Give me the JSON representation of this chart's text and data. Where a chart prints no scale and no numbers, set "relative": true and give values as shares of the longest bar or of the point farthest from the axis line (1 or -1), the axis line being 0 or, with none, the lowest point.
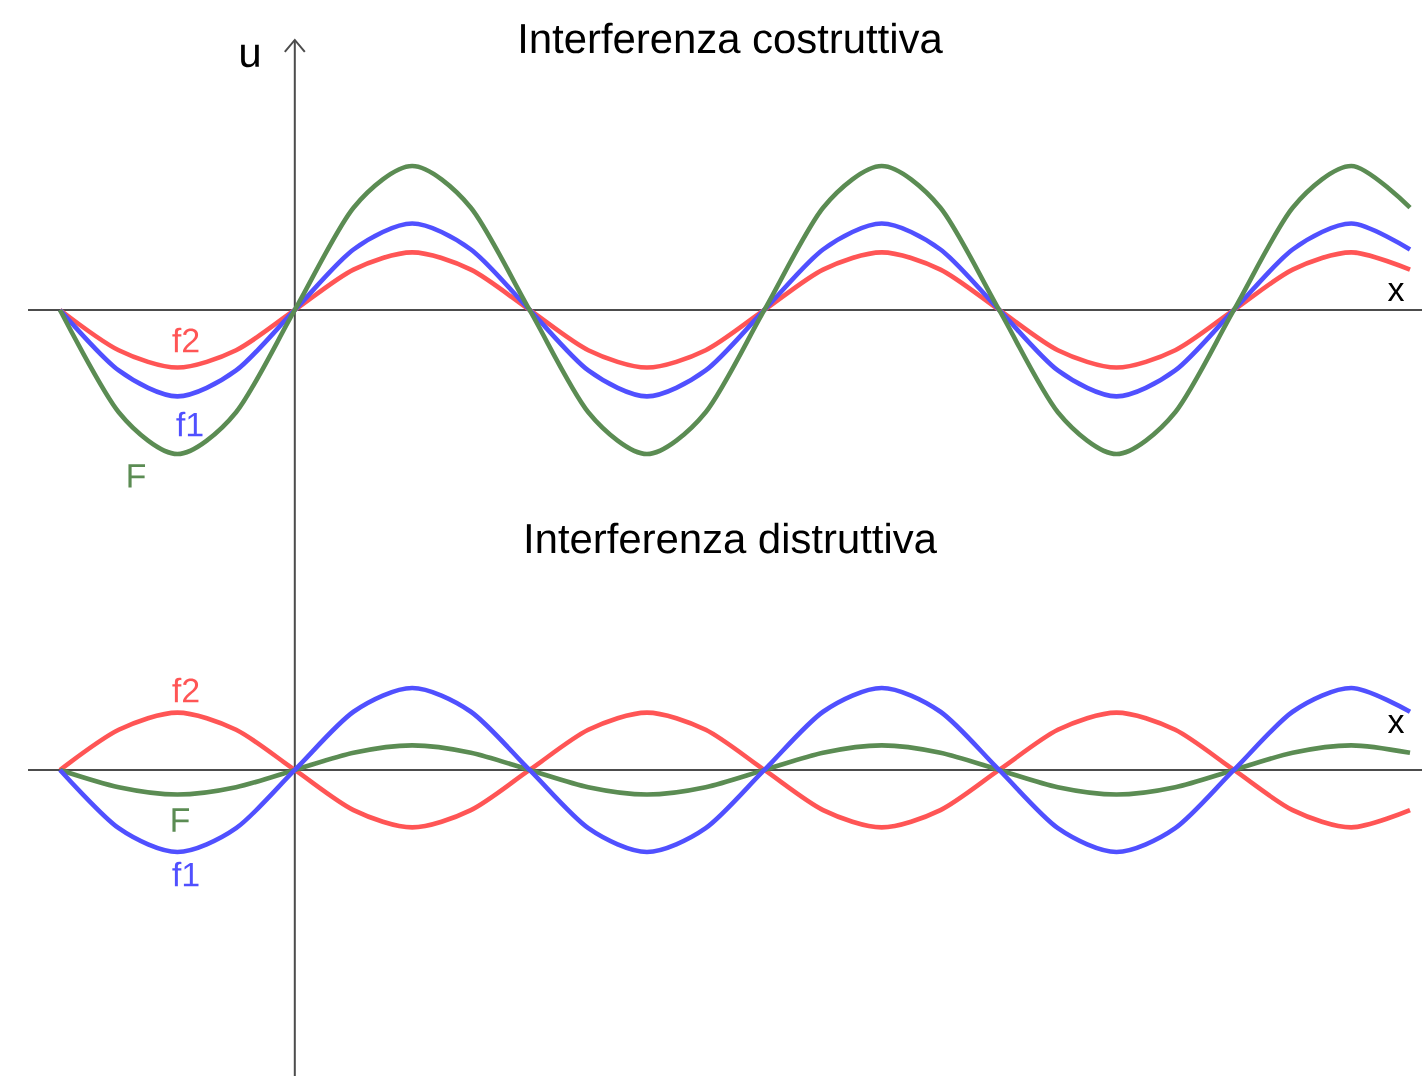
{
  "chart_data": [
    {
      "type": "line",
      "title": "Interferenza costruttiva",
      "xlabel": "x",
      "ylabel": "u",
      "relative": true,
      "categories": [
        null,
        null,
        null,
        null,
        null,
        null,
        null,
        null,
        null,
        null,
        null,
        null,
        null,
        null,
        null,
        null,
        null,
        null,
        null,
        null,
        null,
        null,
        null,
        null
      ],
      "series": [
        {
          "name": "f2",
          "color": "#ff5555",
          "values": [
            0,
            -0.28,
            -0.4,
            -0.28,
            0,
            0.28,
            0.4,
            0.28,
            0,
            -0.28,
            -0.4,
            -0.28,
            0,
            0.28,
            0.4,
            0.28,
            0,
            -0.28,
            -0.4,
            -0.28,
            0,
            0.28,
            0.4,
            0.28
          ]
        },
        {
          "name": "f1",
          "color": "#5050ff",
          "values": [
            0,
            -0.42,
            -0.6,
            -0.42,
            0,
            0.42,
            0.6,
            0.42,
            0,
            -0.42,
            -0.6,
            -0.42,
            0,
            0.42,
            0.6,
            0.42,
            0,
            -0.42,
            -0.6,
            -0.42,
            0,
            0.42,
            0.6,
            0.42
          ]
        },
        {
          "name": "F",
          "color": "#5b8c53",
          "values": [
            0,
            -0.71,
            -1,
            -0.71,
            0,
            0.71,
            1,
            0.71,
            0,
            -0.71,
            -1,
            -0.71,
            0,
            0.71,
            1,
            0.71,
            0,
            -0.71,
            -1,
            -0.71,
            0,
            0.71,
            1,
            0.71
          ]
        }
      ]
    },
    {
      "type": "line",
      "title": "Interferenza distruttiva",
      "xlabel": "x",
      "relative": true,
      "categories": [
        null,
        null,
        null,
        null,
        null,
        null,
        null,
        null,
        null,
        null,
        null,
        null,
        null,
        null,
        null,
        null,
        null,
        null,
        null,
        null,
        null,
        null,
        null,
        null
      ],
      "series": [
        {
          "name": "f2",
          "color": "#ff5555",
          "values": [
            0,
            0.49,
            0.7,
            0.49,
            0,
            -0.49,
            -0.7,
            -0.49,
            0,
            0.49,
            0.7,
            0.49,
            0,
            -0.49,
            -0.7,
            -0.49,
            0,
            0.49,
            0.7,
            0.49,
            0,
            -0.49,
            -0.7,
            -0.49
          ]
        },
        {
          "name": "F",
          "color": "#5b8c53",
          "values": [
            0,
            -0.21,
            -0.3,
            -0.21,
            0,
            0.21,
            0.3,
            0.21,
            0,
            -0.21,
            -0.3,
            -0.21,
            0,
            0.21,
            0.3,
            0.21,
            0,
            -0.21,
            -0.3,
            -0.21,
            0,
            0.21,
            0.3,
            0.21
          ]
        },
        {
          "name": "f1",
          "color": "#5050ff",
          "values": [
            0,
            -0.71,
            -1,
            -0.71,
            0,
            0.71,
            1,
            0.71,
            0,
            -0.71,
            -1,
            -0.71,
            0,
            0.71,
            1,
            0.71,
            0,
            -0.71,
            -1,
            -0.71,
            0,
            0.71,
            1,
            0.71
          ]
        }
      ]
    }
  ]
}
